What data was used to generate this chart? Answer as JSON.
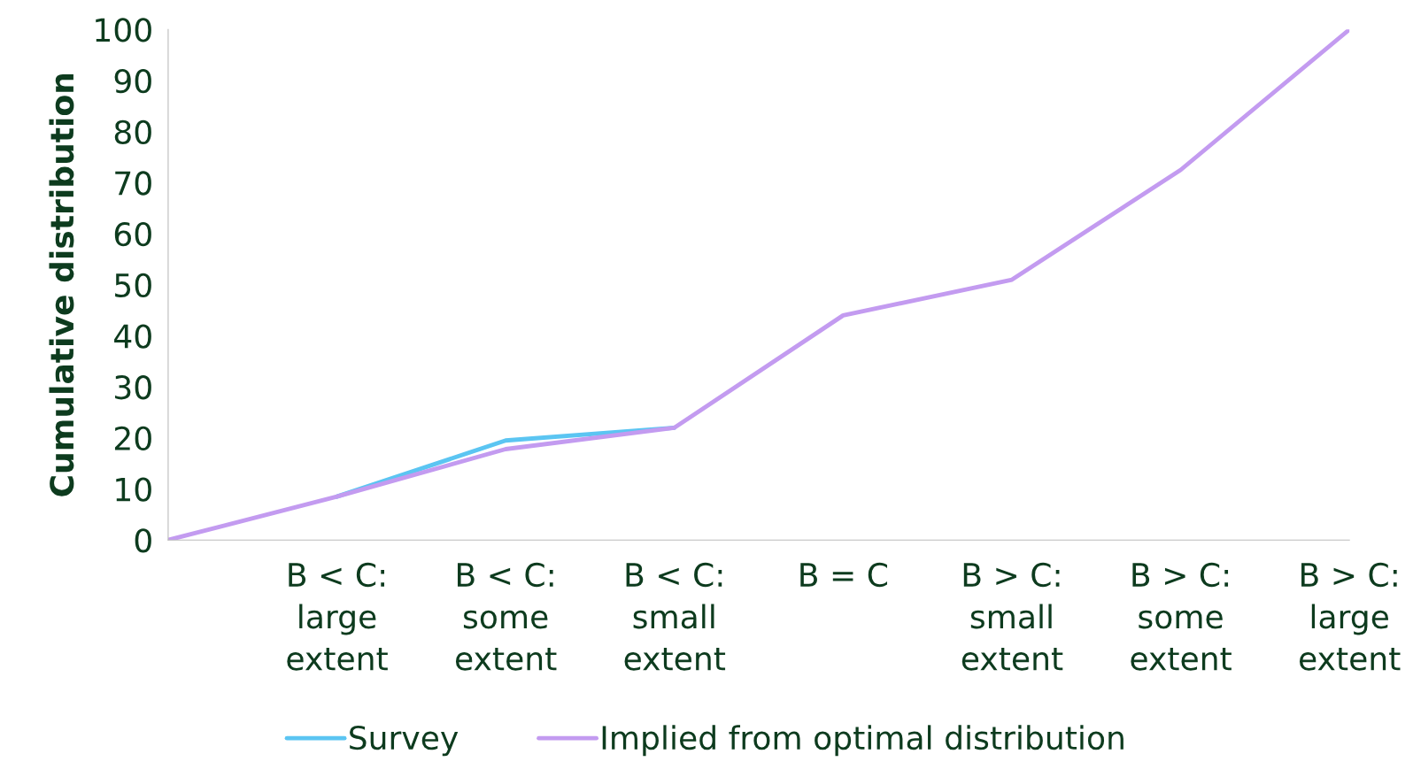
{
  "chart_data": {
    "type": "line",
    "ylabel": "Cumulative distribution",
    "categories": [
      null,
      "B < C:\nlarge\nextent",
      "B < C:\nsome\nextent",
      "B < C:\nsmall\nextent",
      "B = C",
      "B > C:\nsmall\nextent",
      "B > C:\nsome\nextent",
      "B > C:\nlarge\nextent"
    ],
    "series": [
      {
        "name": "Survey",
        "color": "#5bc5f2",
        "values": [
          null,
          8.5,
          19.5,
          22,
          null,
          null,
          null,
          null
        ]
      },
      {
        "name": "Implied from optimal distribution",
        "color": "#c39bf0",
        "values": [
          0,
          8.5,
          17.8,
          22,
          44,
          51,
          72.5,
          100
        ]
      }
    ],
    "ylim": [
      0,
      100
    ],
    "yticks": [
      0,
      10,
      20,
      30,
      40,
      50,
      60,
      70,
      80,
      90,
      100
    ],
    "grid": false,
    "legend": "bottom",
    "marker": "none",
    "line_style": "solid"
  }
}
